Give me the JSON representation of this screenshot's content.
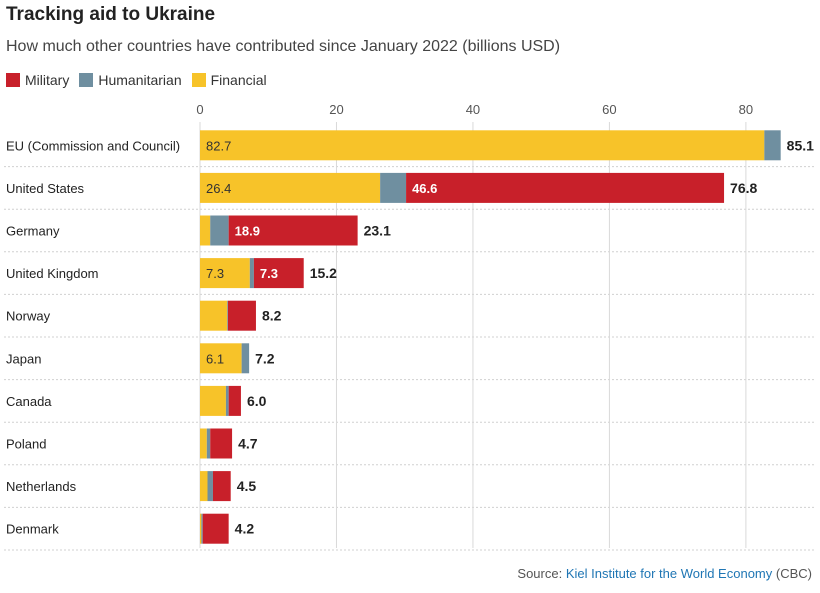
{
  "chart_data": {
    "type": "bar",
    "orientation": "horizontal",
    "stacked": true,
    "title": "Tracking aid to Ukraine",
    "subtitle": "How much other countries have contributed since January 2022 (billions USD)",
    "xlim": [
      0,
      85
    ],
    "xticks": [
      0,
      20,
      40,
      60,
      80
    ],
    "grid": true,
    "legend_position": "top-left",
    "colors": {
      "Military": "#c8202a",
      "Humanitarian": "#6f8fa0",
      "Financial": "#f7c329"
    },
    "legend": [
      "Military",
      "Humanitarian",
      "Financial"
    ],
    "stack_order": [
      "Financial",
      "Humanitarian",
      "Military"
    ],
    "categories": [
      "EU (Commission and Council)",
      "United States",
      "Germany",
      "United Kingdom",
      "Norway",
      "Japan",
      "Canada",
      "Poland",
      "Netherlands",
      "Denmark"
    ],
    "series": [
      {
        "name": "Financial",
        "values": [
          82.7,
          26.4,
          1.5,
          7.3,
          4.0,
          6.1,
          3.8,
          1.0,
          1.1,
          0.2
        ]
      },
      {
        "name": "Humanitarian",
        "values": [
          2.4,
          3.8,
          2.7,
          0.6,
          0.1,
          1.1,
          0.4,
          0.5,
          0.8,
          0.2
        ]
      },
      {
        "name": "Military",
        "values": [
          0.0,
          46.6,
          18.9,
          7.3,
          4.1,
          0.0,
          1.8,
          3.2,
          2.6,
          3.8
        ]
      }
    ],
    "segment_labels": [
      {
        "category": "EU (Commission and Council)",
        "series": "Financial",
        "text": "82.7"
      },
      {
        "category": "United States",
        "series": "Financial",
        "text": "26.4"
      },
      {
        "category": "United States",
        "series": "Military",
        "text": "46.6"
      },
      {
        "category": "Germany",
        "series": "Military",
        "text": "18.9"
      },
      {
        "category": "United Kingdom",
        "series": "Financial",
        "text": "7.3"
      },
      {
        "category": "United Kingdom",
        "series": "Military",
        "text": "7.3"
      },
      {
        "category": "Japan",
        "series": "Financial",
        "text": "6.1"
      }
    ],
    "totals": [
      "85.1",
      "76.8",
      "23.1",
      "15.2",
      "8.2",
      "7.2",
      "6.0",
      "4.7",
      "4.5",
      "4.2"
    ]
  },
  "source": {
    "prefix": "Source:",
    "link_text": "Kiel Institute for the World Economy",
    "suffix": "(CBC)"
  }
}
